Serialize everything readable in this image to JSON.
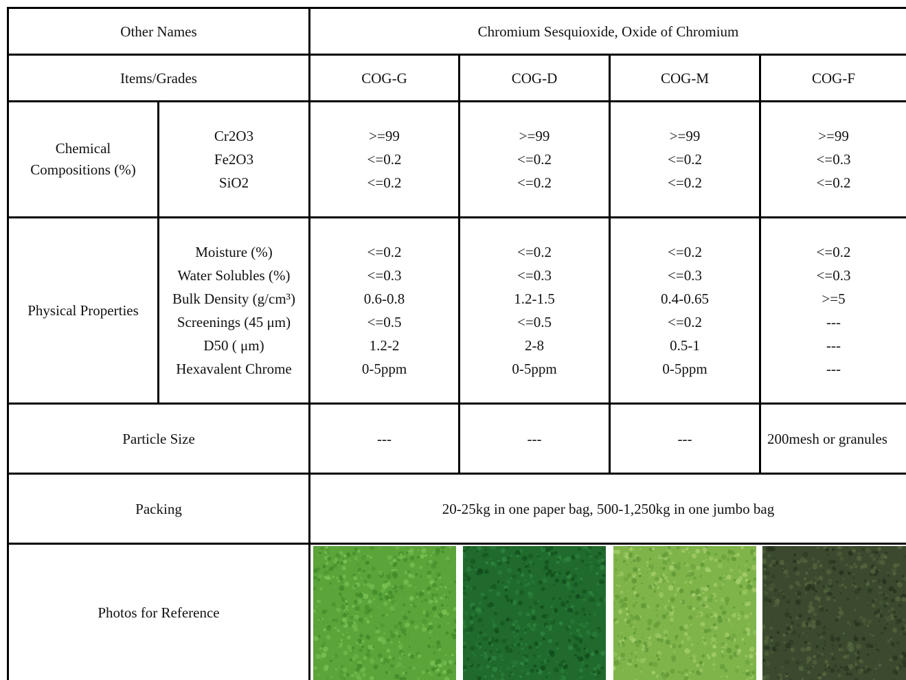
{
  "table": {
    "other_names": {
      "label": "Other Names",
      "value": "Chromium Sesquioxide, Oxide of Chromium"
    },
    "grades": {
      "label": "Items/Grades",
      "columns": [
        "COG-G",
        "COG-D",
        "COG-M",
        "COG-F"
      ]
    },
    "chemical": {
      "label": "Chemical Compositions (%)",
      "label_lines": [
        "Chemical",
        "Compositions (%)"
      ],
      "items": [
        "Cr2O3",
        "Fe2O3",
        "SiO2"
      ],
      "values": [
        [
          ">=99",
          "<=0.2",
          "<=0.2"
        ],
        [
          ">=99",
          "<=0.2",
          "<=0.2"
        ],
        [
          ">=99",
          "<=0.2",
          "<=0.2"
        ],
        [
          ">=99",
          "<=0.3",
          "<=0.2"
        ]
      ]
    },
    "physical": {
      "label": "Physical Properties",
      "items": [
        "Moisture (%)",
        "Water Solubles (%)",
        "Bulk Density (g/cm³)",
        "Screenings (45 μm)",
        "D50 ( μm)",
        "Hexavalent Chrome"
      ],
      "values": [
        [
          "<=0.2",
          "<=0.3",
          "0.6-0.8",
          "<=0.5",
          "1.2-2",
          "0-5ppm"
        ],
        [
          "<=0.2",
          "<=0.3",
          "1.2-1.5",
          "<=0.5",
          "2-8",
          "0-5ppm"
        ],
        [
          "<=0.2",
          "<=0.3",
          "0.4-0.65",
          "<=0.2",
          "0.5-1",
          "0-5ppm"
        ],
        [
          "<=0.2",
          "<=0.3",
          ">=5",
          "---",
          "---",
          "---"
        ]
      ]
    },
    "particle_size": {
      "label": "Particle Size",
      "values": [
        "---",
        "---",
        "---",
        "200mesh or granules"
      ]
    },
    "packing": {
      "label": "Packing",
      "value": "20-25kg in one paper bag, 500-1,250kg in one jumbo bag"
    },
    "photos": {
      "label": "Photos for Reference",
      "swatches": [
        {
          "base": "#5aa43a",
          "dark": "#3f8a28",
          "light": "#7cc254"
        },
        {
          "base": "#1f6a2c",
          "dark": "#114d1c",
          "light": "#2f8540"
        },
        {
          "base": "#7fb44a",
          "dark": "#5e9634",
          "light": "#a6cf6e"
        },
        {
          "base": "#3b4a2e",
          "dark": "#26321e",
          "light": "#56663f"
        }
      ]
    }
  }
}
